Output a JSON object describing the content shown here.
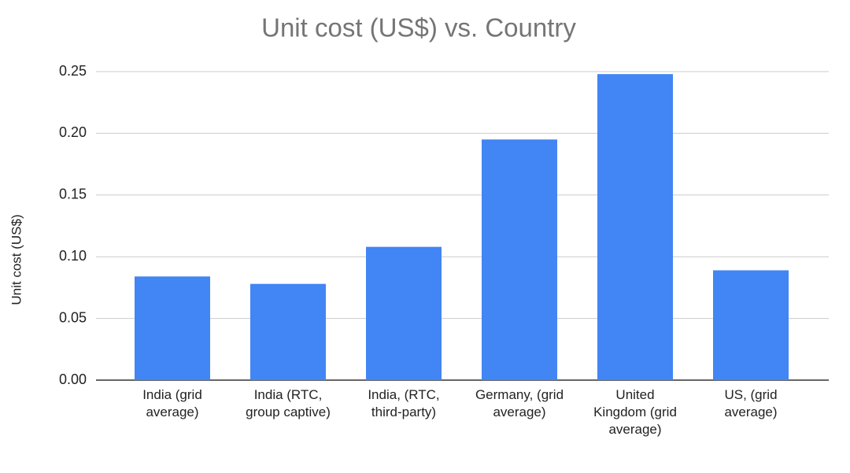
{
  "chart_data": {
    "type": "bar",
    "title": "Unit cost (US$) vs. Country",
    "y_label": "Unit cost (US$)",
    "categories": [
      "India (grid average)",
      "India (RTC, group captive)",
      "India, (RTC, third-party)",
      "Germany, (grid average)",
      "United Kingdom (grid average)",
      "US, (grid average)"
    ],
    "values": [
      0.084,
      0.078,
      0.108,
      0.195,
      0.248,
      0.089
    ],
    "color": "#4285f4",
    "ylim": [
      0,
      0.25
    ],
    "yticks": [
      {
        "value": 0,
        "label": "0.00"
      },
      0.05,
      {
        "value": 0.1,
        "label": "0.10"
      },
      0.15,
      {
        "value": 0.2,
        "label": "0.20"
      },
      0.25
    ],
    "grid": true
  }
}
